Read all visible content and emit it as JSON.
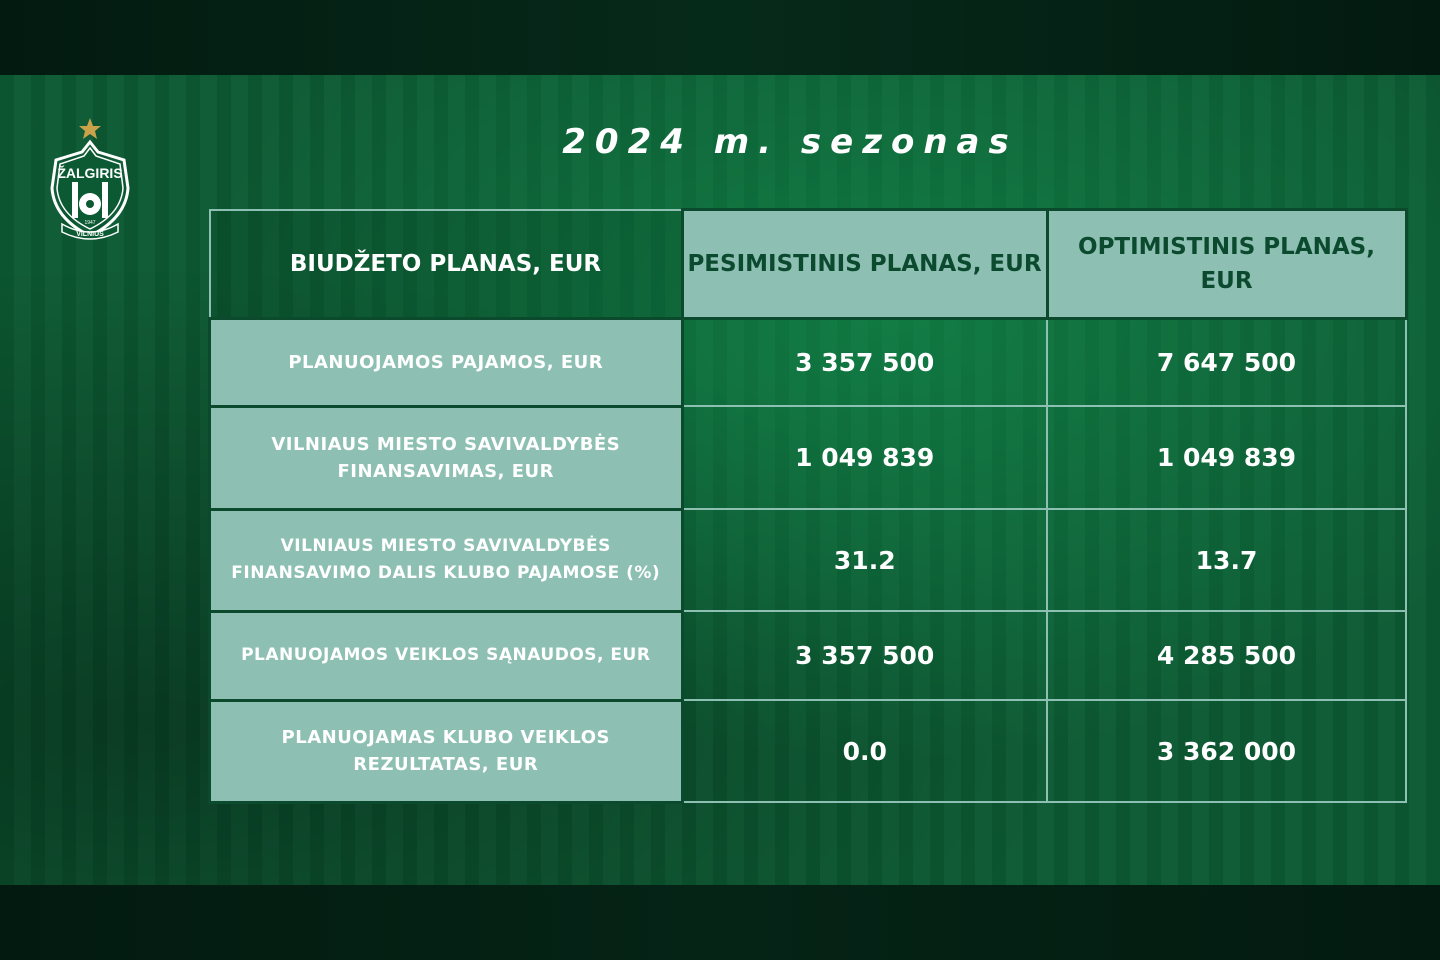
{
  "title": "2024 m. sezonas",
  "logo": {
    "name": "ŽALGIRIS",
    "year": "1947",
    "city": "VILNIUS",
    "star_color": "#c9a24a"
  },
  "colors": {
    "background": "#0c5a33",
    "header_fill": "#8dc0b2",
    "header_text": "#0c4a30",
    "text": "#ffffff"
  },
  "table": {
    "headers": [
      "BIUDŽETO PLANAS, EUR",
      "PESIMISTINIS PLANAS, EUR",
      "OPTIMISTINIS PLANAS, EUR"
    ],
    "rows": [
      {
        "label": "PLANUOJAMOS PAJAMOS, EUR",
        "pessimistic": "3 357 500",
        "optimistic": "7 647 500"
      },
      {
        "label": "VILNIAUS MIESTO SAVIVALDYBĖS FINANSAVIMAS, EUR",
        "pessimistic": "1 049 839",
        "optimistic": "1 049 839"
      },
      {
        "label": "VILNIAUS MIESTO SAVIVALDYBĖS FINANSAVIMO DALIS KLUBO PAJAMOSE (%)",
        "pessimistic": "31.2",
        "optimistic": "13.7"
      },
      {
        "label": "PLANUOJAMOS VEIKLOS SĄNAUDOS, EUR",
        "pessimistic": "3 357 500",
        "optimistic": "4 285 500"
      },
      {
        "label": "PLANUOJAMAS KLUBO VEIKLOS REZULTATAS, EUR",
        "pessimistic": "0.0",
        "optimistic": "3 362 000"
      }
    ]
  }
}
